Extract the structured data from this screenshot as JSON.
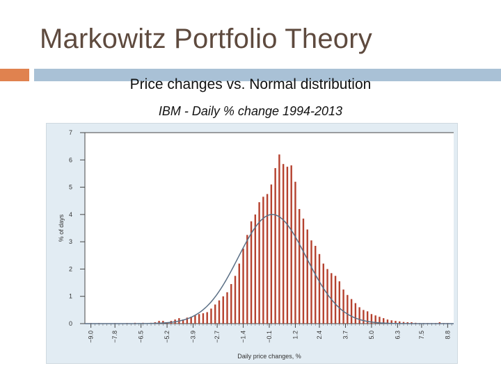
{
  "slide": {
    "title": "Markowitz Portfolio Theory",
    "subtitle": "Price changes vs. Normal distribution"
  },
  "colors": {
    "title_text": "#5e4a3e",
    "accent_orange": "#e0824f",
    "accent_blue": "#a9c1d6",
    "panel_bg": "#e2ecf3",
    "bar": "#b5412e",
    "normal_curve": "#5a6f85"
  },
  "chart_data": {
    "type": "bar",
    "title": "IBM - Daily % change 1994-2013",
    "xlabel": "Daily price changes, %",
    "ylabel": "% of days",
    "ylim": [
      0,
      7
    ],
    "yticks": [
      "0",
      "1",
      "2",
      "3",
      "4",
      "5",
      "6",
      "7"
    ],
    "xlim": [
      -9.3,
      9.1
    ],
    "xticks": [
      "-9.0",
      "-7.8",
      "-6.5",
      "-5.2",
      "-3.9",
      "-2.7",
      "-1.4",
      "-0.1",
      "1.2",
      "2.4",
      "3.7",
      "5.0",
      "6.3",
      "7.5",
      "8.8"
    ],
    "grid": false,
    "series": [
      {
        "kind": "bars",
        "x": [
          -9.0,
          -8.8,
          -8.6,
          -8.4,
          -8.2,
          -8.0,
          -7.8,
          -7.6,
          -7.4,
          -7.2,
          -7.0,
          -6.8,
          -6.6,
          -6.4,
          -6.2,
          -6.0,
          -5.8,
          -5.6,
          -5.4,
          -5.2,
          -5.0,
          -4.8,
          -4.6,
          -4.4,
          -4.2,
          -4.0,
          -3.8,
          -3.6,
          -3.4,
          -3.2,
          -3.0,
          -2.8,
          -2.6,
          -2.4,
          -2.2,
          -2.0,
          -1.8,
          -1.6,
          -1.4,
          -1.2,
          -1.0,
          -0.8,
          -0.6,
          -0.4,
          -0.2,
          0.0,
          0.2,
          0.4,
          0.6,
          0.8,
          1.0,
          1.2,
          1.4,
          1.6,
          1.8,
          2.0,
          2.2,
          2.4,
          2.6,
          2.8,
          3.0,
          3.2,
          3.4,
          3.6,
          3.8,
          4.0,
          4.2,
          4.4,
          4.6,
          4.8,
          5.0,
          5.2,
          5.4,
          5.6,
          5.8,
          6.0,
          6.2,
          6.4,
          6.6,
          6.8,
          7.0,
          7.2,
          7.4,
          7.6,
          7.8,
          8.0,
          8.2,
          8.4,
          8.6,
          8.8
        ],
        "values": [
          0.02,
          0.0,
          0.02,
          0.0,
          0.0,
          0.0,
          0.02,
          0.0,
          0.0,
          0.02,
          0.0,
          0.03,
          0.0,
          0.03,
          0.0,
          0.03,
          0.05,
          0.1,
          0.1,
          0.05,
          0.1,
          0.15,
          0.2,
          0.15,
          0.22,
          0.25,
          0.3,
          0.35,
          0.38,
          0.42,
          0.55,
          0.7,
          0.85,
          1.0,
          1.15,
          1.45,
          1.75,
          2.2,
          2.75,
          3.25,
          3.75,
          4.0,
          4.45,
          4.65,
          4.75,
          5.1,
          5.7,
          6.2,
          5.85,
          5.75,
          5.8,
          5.2,
          4.2,
          3.85,
          3.45,
          3.05,
          2.85,
          2.55,
          2.2,
          2.0,
          1.85,
          1.75,
          1.55,
          1.25,
          1.05,
          0.9,
          0.75,
          0.6,
          0.5,
          0.45,
          0.35,
          0.3,
          0.25,
          0.2,
          0.15,
          0.12,
          0.1,
          0.08,
          0.06,
          0.05,
          0.05,
          0.03,
          0.02,
          0.02,
          0.02,
          0.02,
          0.02,
          0.05,
          0.02,
          0.02
        ]
      },
      {
        "kind": "normal-curve",
        "mean": 0.05,
        "sd": 1.7,
        "peak": 4.0
      }
    ]
  }
}
